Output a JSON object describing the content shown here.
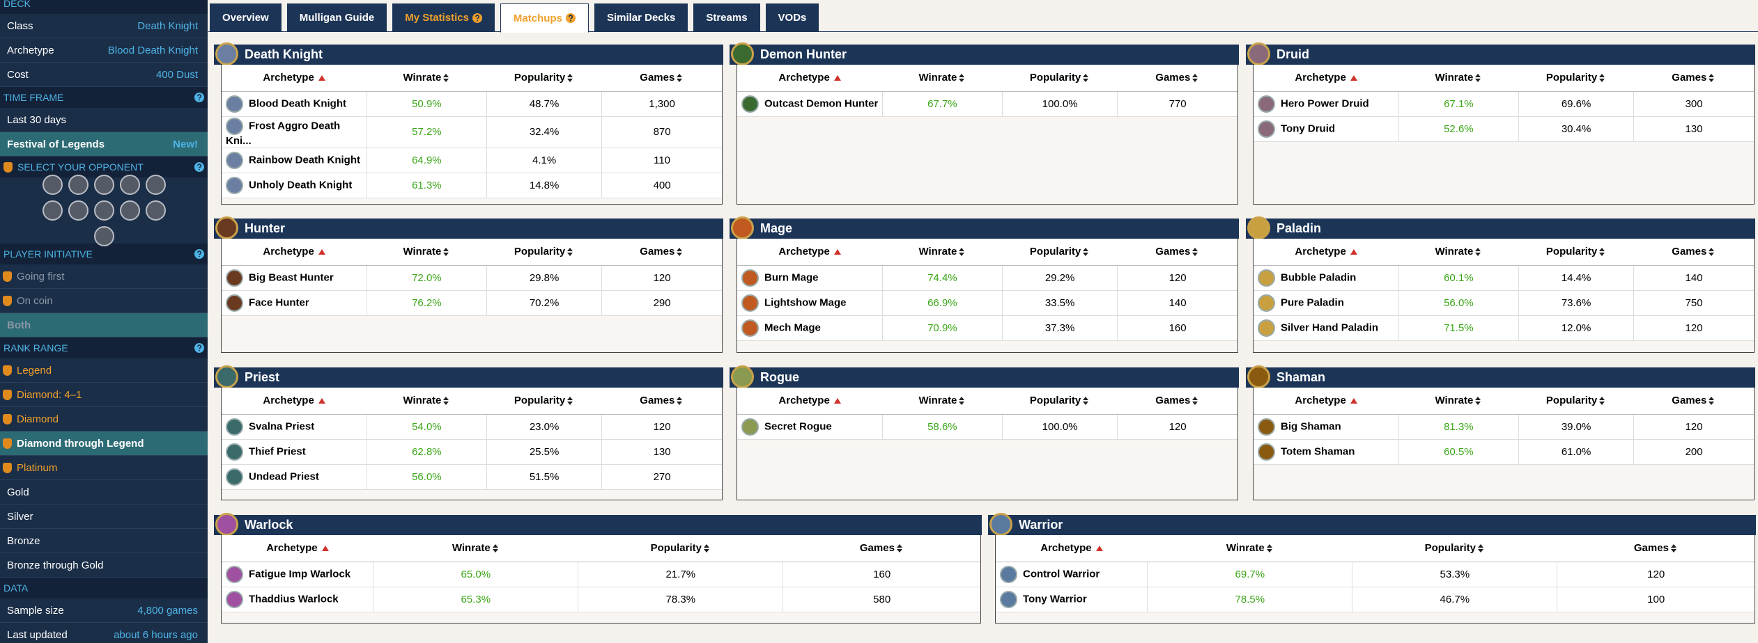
{
  "sidebar": {
    "deck": {
      "header": "DECK",
      "rows": [
        {
          "label": "Class",
          "value": "Death Knight"
        },
        {
          "label": "Archetype",
          "value": "Blood Death Knight"
        },
        {
          "label": "Cost",
          "value": "400 Dust"
        }
      ]
    },
    "time_frame": {
      "header": "TIME FRAME",
      "items": [
        "Last 30 days",
        "Festival of Legends"
      ],
      "badge": "New!"
    },
    "opponent": {
      "header": "SELECT YOUR OPPONENT"
    },
    "initiative": {
      "header": "PLAYER INITIATIVE",
      "items": [
        "Going first",
        "On coin",
        "Both"
      ]
    },
    "rank_range": {
      "header": "RANK RANGE",
      "items": [
        "Legend",
        "Diamond: 4–1",
        "Diamond",
        "Diamond through Legend",
        "Platinum",
        "Gold",
        "Silver",
        "Bronze",
        "Bronze through Gold"
      ]
    },
    "data": {
      "header": "DATA",
      "rows": [
        {
          "label": "Sample size",
          "value": "4,800 games"
        },
        {
          "label": "Last updated",
          "value": "about 6 hours ago"
        }
      ]
    }
  },
  "tabs": [
    "Overview",
    "Mulligan Guide",
    "My Statistics",
    "Matchups",
    "Similar Decks",
    "Streams",
    "VODs"
  ],
  "columns": [
    "Archetype",
    "Winrate",
    "Popularity",
    "Games"
  ],
  "panels": [
    {
      "class": "Death Knight",
      "rows": [
        [
          "Blood Death Knight",
          "50.9%",
          "48.7%",
          "1,300"
        ],
        [
          "Frost Aggro Death Kni...",
          "57.2%",
          "32.4%",
          "870"
        ],
        [
          "Rainbow Death Knight",
          "64.9%",
          "4.1%",
          "110"
        ],
        [
          "Unholy Death Knight",
          "61.3%",
          "14.8%",
          "400"
        ]
      ]
    },
    {
      "class": "Demon Hunter",
      "rows": [
        [
          "Outcast Demon Hunter",
          "67.7%",
          "100.0%",
          "770"
        ]
      ]
    },
    {
      "class": "Druid",
      "rows": [
        [
          "Hero Power Druid",
          "67.1%",
          "69.6%",
          "300"
        ],
        [
          "Tony Druid",
          "52.6%",
          "30.4%",
          "130"
        ]
      ]
    },
    {
      "class": "Hunter",
      "rows": [
        [
          "Big Beast Hunter",
          "72.0%",
          "29.8%",
          "120"
        ],
        [
          "Face Hunter",
          "76.2%",
          "70.2%",
          "290"
        ]
      ]
    },
    {
      "class": "Mage",
      "rows": [
        [
          "Burn Mage",
          "74.4%",
          "29.2%",
          "120"
        ],
        [
          "Lightshow Mage",
          "66.9%",
          "33.5%",
          "140"
        ],
        [
          "Mech Mage",
          "70.9%",
          "37.3%",
          "160"
        ]
      ]
    },
    {
      "class": "Paladin",
      "rows": [
        [
          "Bubble Paladin",
          "60.1%",
          "14.4%",
          "140"
        ],
        [
          "Pure Paladin",
          "56.0%",
          "73.6%",
          "750"
        ],
        [
          "Silver Hand Paladin",
          "71.5%",
          "12.0%",
          "120"
        ]
      ]
    },
    {
      "class": "Priest",
      "rows": [
        [
          "Svalna Priest",
          "54.0%",
          "23.0%",
          "120"
        ],
        [
          "Thief Priest",
          "62.8%",
          "25.5%",
          "130"
        ],
        [
          "Undead Priest",
          "56.0%",
          "51.5%",
          "270"
        ]
      ]
    },
    {
      "class": "Rogue",
      "rows": [
        [
          "Secret Rogue",
          "58.6%",
          "100.0%",
          "120"
        ]
      ]
    },
    {
      "class": "Shaman",
      "rows": [
        [
          "Big Shaman",
          "81.3%",
          "39.0%",
          "120"
        ],
        [
          "Totem Shaman",
          "60.5%",
          "61.0%",
          "200"
        ]
      ]
    },
    {
      "class": "Warlock",
      "rows": [
        [
          "Fatigue Imp Warlock",
          "65.0%",
          "21.7%",
          "160"
        ],
        [
          "Thaddius Warlock",
          "65.3%",
          "78.3%",
          "580"
        ]
      ]
    },
    {
      "class": "Warrior",
      "rows": [
        [
          "Control Warrior",
          "69.7%",
          "53.3%",
          "120"
        ],
        [
          "Tony Warrior",
          "78.5%",
          "46.7%",
          "100"
        ]
      ]
    }
  ]
}
